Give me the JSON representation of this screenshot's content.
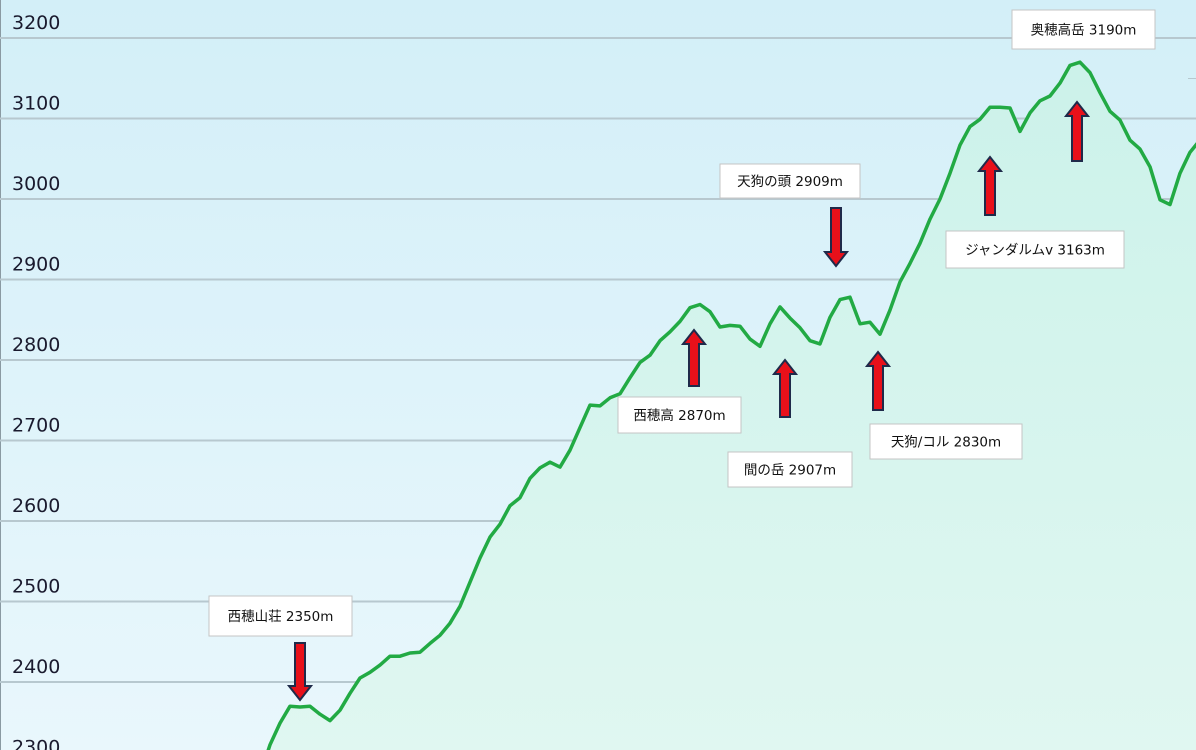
{
  "chart_data": {
    "type": "area",
    "title": "",
    "xlabel": "",
    "ylabel": "",
    "ylim": [
      2316,
      3247
    ],
    "yticks": [
      2300,
      2400,
      2500,
      2600,
      2700,
      2800,
      2900,
      3000,
      3100,
      3200
    ],
    "grid": true,
    "legend": "none",
    "colors": {
      "line": "#22aa44",
      "fill": "#d6f5ee",
      "bg_top": "#d3eff8",
      "bg_bottom": "#e9f7fc",
      "grid": "#b7c8cf",
      "arrow": "#e8101a",
      "arrow_outline": "#1f2a4a"
    },
    "series": [
      {
        "values": [
          2322,
          2349,
          2370,
          2369,
          2370,
          2360,
          2352,
          2365,
          2386,
          2405,
          2412,
          2421,
          2432,
          2432,
          2436,
          2437,
          2448,
          2458,
          2473,
          2494,
          2524,
          2554,
          2580,
          2596,
          2619,
          2629,
          2653,
          2666,
          2673,
          2667,
          2688,
          2716,
          2744,
          2743,
          2753,
          2758,
          2778,
          2797,
          2806,
          2824,
          2835,
          2848,
          2865,
          2869,
          2860,
          2841,
          2843,
          2842,
          2826,
          2817,
          2845,
          2866,
          2852,
          2840,
          2824,
          2820,
          2853,
          2875,
          2878,
          2845,
          2847,
          2832,
          2862,
          2897,
          2920,
          2945,
          2975,
          3000,
          3032,
          3067,
          3090,
          3099,
          3114,
          3114,
          3113,
          3084,
          3107,
          3122,
          3128,
          3144,
          3166,
          3170,
          3157,
          3132,
          3109,
          3098,
          3073,
          3062,
          3040,
          2999,
          2993,
          3032,
          3058
        ]
      }
    ],
    "annotations": [
      {
        "text": "西穂山荘 2350m",
        "arrow": "down"
      },
      {
        "text": "西穂高 2870m",
        "arrow": "up"
      },
      {
        "text": "間の岳 2907m",
        "arrow": "up"
      },
      {
        "text": "天狗の頭  2909m",
        "arrow": "down"
      },
      {
        "text": "天狗/コル 2830m",
        "arrow": "up"
      },
      {
        "text": "ジャンダルムv 3163m",
        "arrow": "up"
      },
      {
        "text": "奥穂高岳 3190m",
        "arrow": "up"
      }
    ]
  }
}
